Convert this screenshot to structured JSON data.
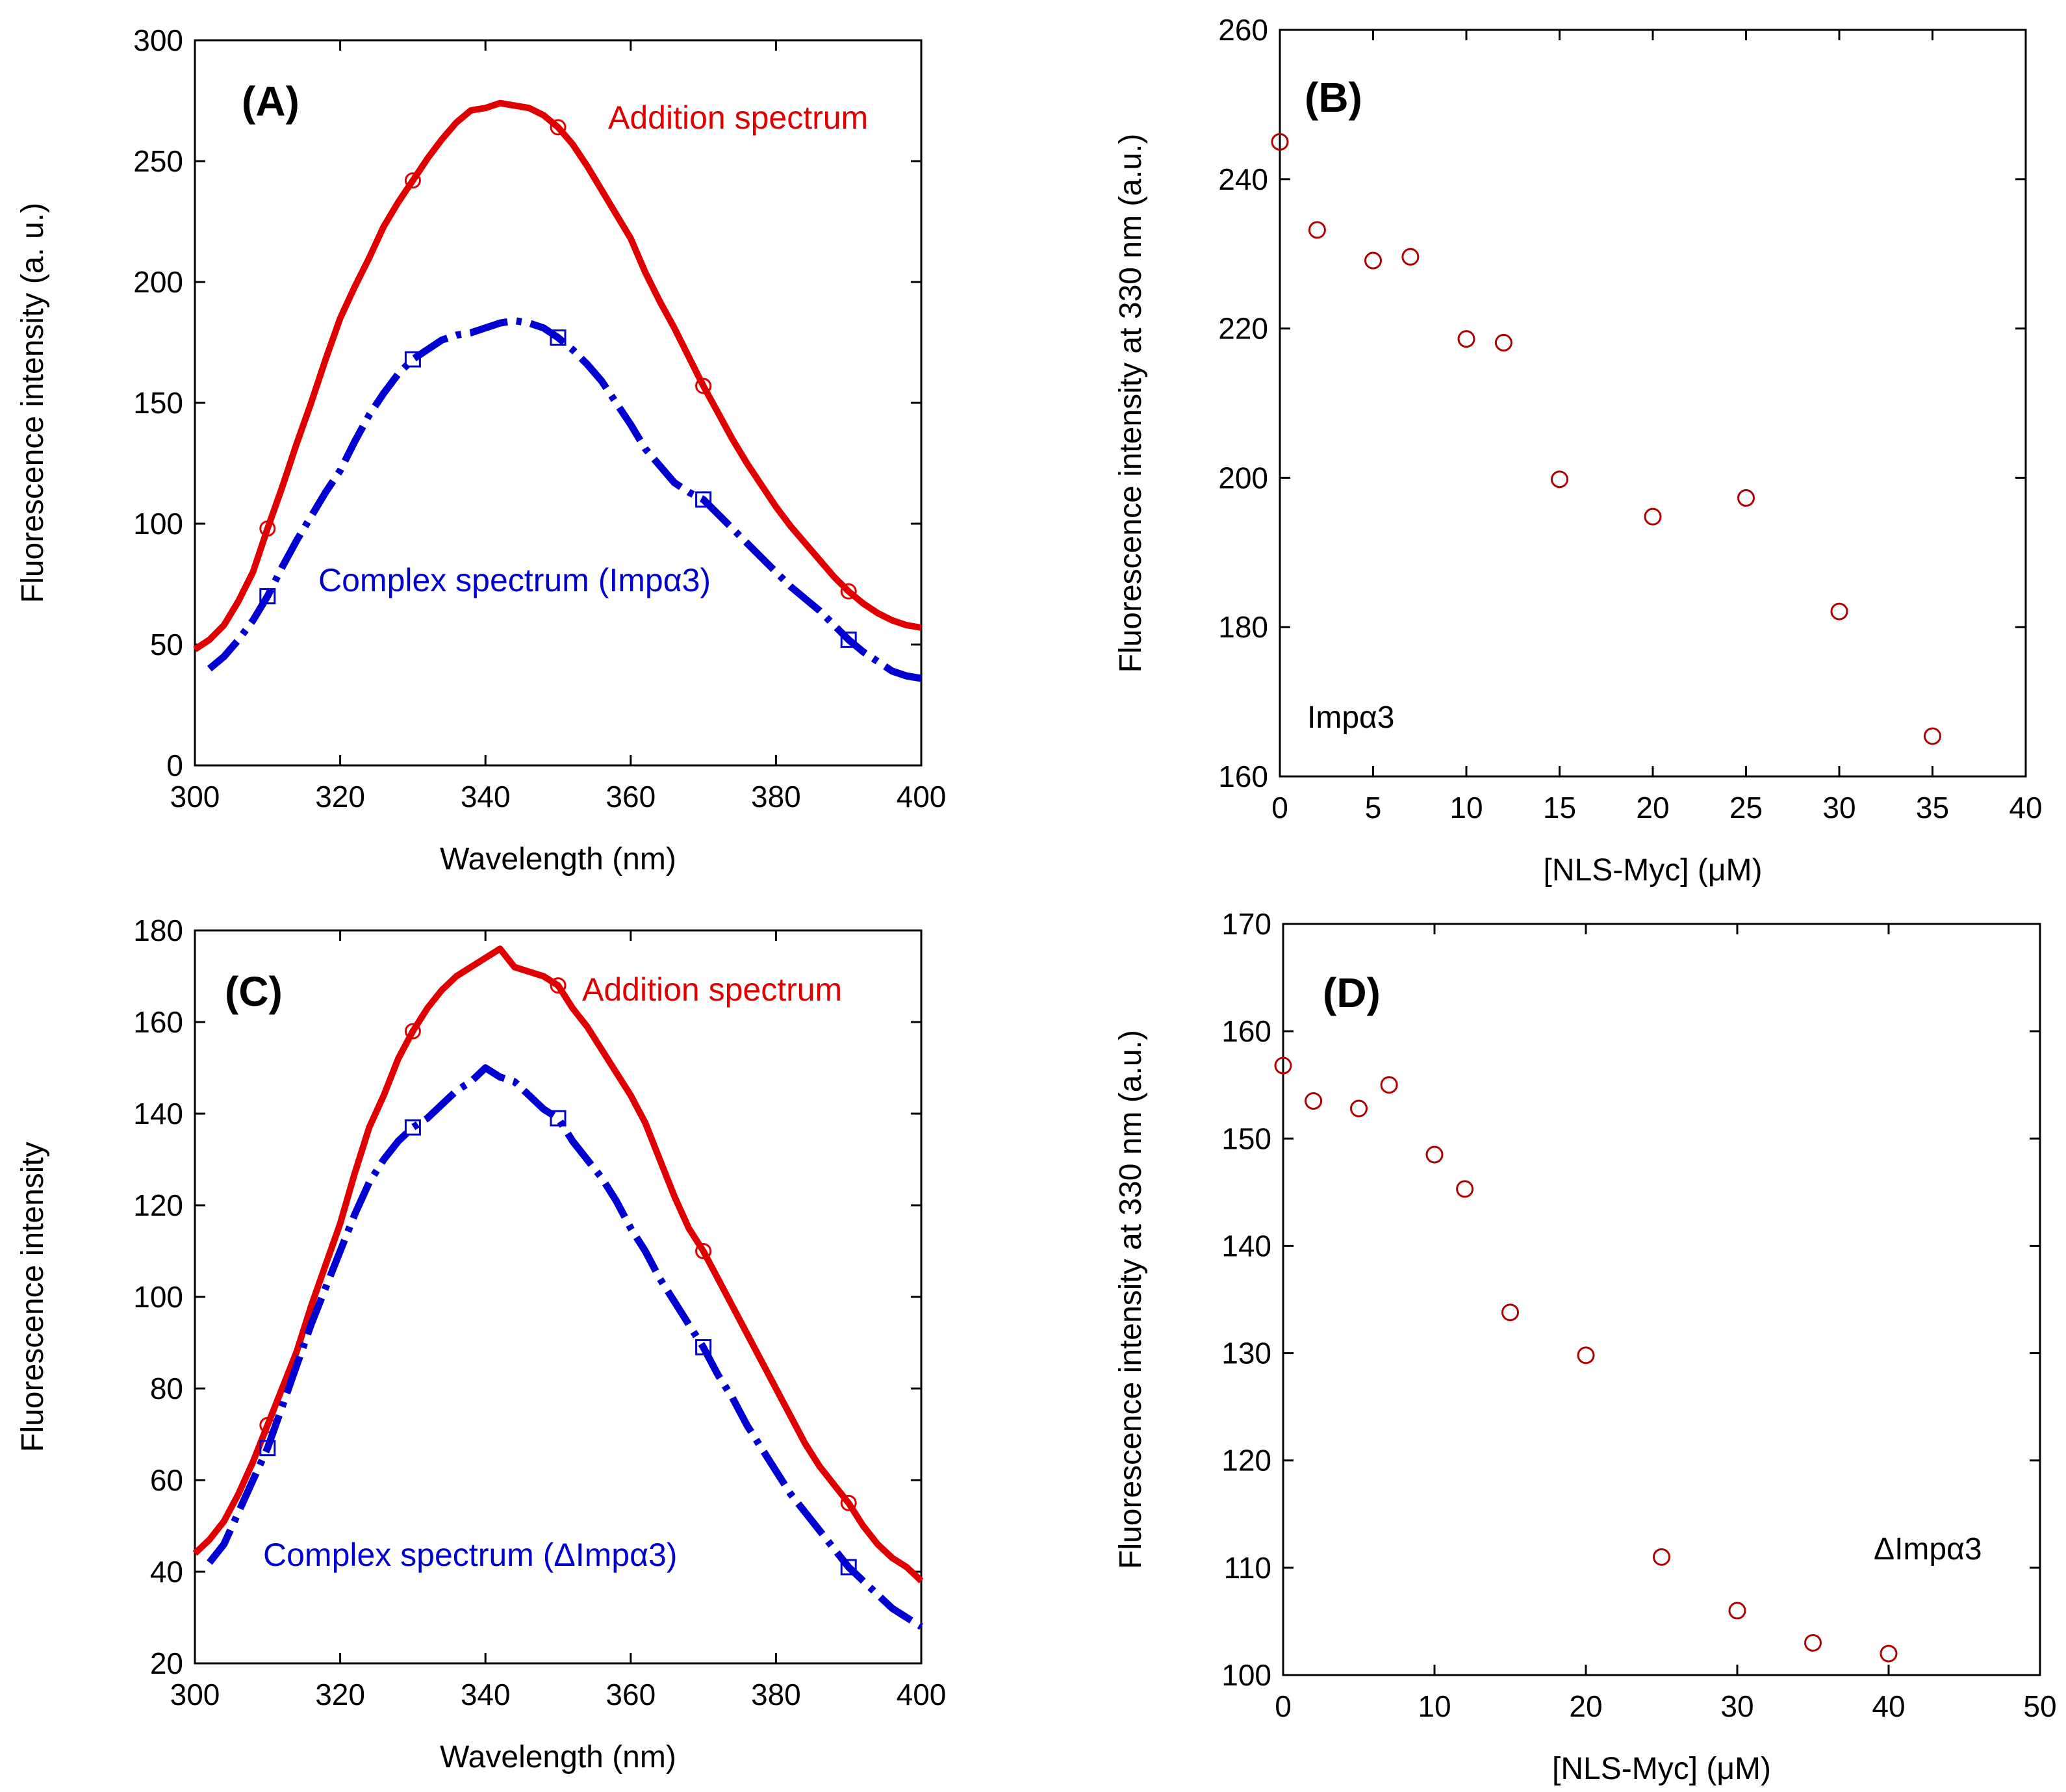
{
  "chart_data": [
    {
      "id": "A",
      "type": "line",
      "panel_label": "(A)",
      "xlabel": "Wavelength (nm)",
      "ylabel": "Fluorescence intensity (a. u.)",
      "xlim": [
        300,
        400
      ],
      "ylim": [
        0,
        300
      ],
      "xticks": [
        300,
        320,
        340,
        360,
        380,
        400
      ],
      "yticks": [
        0,
        50,
        100,
        150,
        200,
        250,
        300
      ],
      "grid": false,
      "series": [
        {
          "name": "Addition spectrum",
          "color": "#e00000",
          "style": "solid",
          "marker": "circle",
          "marker_x": [
            310,
            330,
            350,
            370,
            390
          ],
          "x": [
            300,
            302,
            304,
            306,
            308,
            310,
            312,
            314,
            316,
            318,
            320,
            322,
            324,
            326,
            328,
            330,
            332,
            334,
            336,
            338,
            340,
            342,
            344,
            346,
            348,
            350,
            352,
            354,
            356,
            358,
            360,
            362,
            364,
            366,
            368,
            370,
            372,
            374,
            376,
            378,
            380,
            382,
            384,
            386,
            388,
            390,
            392,
            394,
            396,
            398,
            400
          ],
          "y": [
            48,
            52,
            58,
            68,
            80,
            98,
            115,
            133,
            150,
            168,
            185,
            198,
            210,
            223,
            233,
            242,
            251,
            259,
            266,
            271,
            272,
            274,
            273,
            272,
            269,
            264,
            257,
            248,
            238,
            228,
            218,
            204,
            192,
            181,
            169,
            157,
            146,
            135,
            125,
            116,
            107,
            99,
            92,
            85,
            78,
            72,
            67,
            63,
            60,
            58,
            57
          ]
        },
        {
          "name": "Complex spectrum (Impα3)",
          "color": "#0000d0",
          "style": "dashed",
          "marker": "square",
          "marker_x": [
            310,
            330,
            350,
            370,
            390
          ],
          "x": [
            302,
            304,
            306,
            308,
            310,
            312,
            314,
            316,
            318,
            320,
            322,
            324,
            326,
            328,
            330,
            332,
            334,
            336,
            338,
            340,
            342,
            344,
            346,
            348,
            350,
            352,
            354,
            356,
            358,
            360,
            362,
            364,
            366,
            368,
            370,
            372,
            374,
            376,
            378,
            380,
            382,
            384,
            386,
            388,
            390,
            392,
            394,
            396,
            398,
            400
          ],
          "y": [
            40,
            45,
            52,
            60,
            70,
            82,
            93,
            103,
            113,
            122,
            134,
            145,
            154,
            162,
            168,
            172,
            176,
            178,
            179,
            181,
            183,
            184,
            183,
            181,
            177,
            172,
            166,
            159,
            150,
            141,
            131,
            124,
            117,
            113,
            110,
            104,
            98,
            92,
            86,
            80,
            74,
            69,
            64,
            58,
            52,
            47,
            43,
            39,
            37,
            36
          ]
        }
      ]
    },
    {
      "id": "B",
      "type": "scatter",
      "panel_label": "(B)",
      "annotation": "Impα3",
      "xlabel": "[NLS-Myc] (μM)",
      "ylabel": "Fluorescence intensity at 330 nm (a.u.)",
      "xlim": [
        0,
        40
      ],
      "ylim": [
        160,
        260
      ],
      "xticks": [
        0,
        5,
        10,
        15,
        20,
        25,
        30,
        35,
        40
      ],
      "yticks": [
        160,
        180,
        200,
        220,
        240,
        260
      ],
      "grid": false,
      "marker_color": "#b00000",
      "points": {
        "x": [
          0,
          2,
          5,
          7,
          10,
          12,
          15,
          20,
          25,
          30,
          35
        ],
        "y": [
          245,
          233.2,
          229.1,
          229.6,
          218.6,
          218.1,
          199.8,
          194.8,
          197.3,
          182.1,
          165.4
        ]
      }
    },
    {
      "id": "C",
      "type": "line",
      "panel_label": "(C)",
      "xlabel": "Wavelength (nm)",
      "ylabel": "Fluorescence intensity",
      "xlim": [
        300,
        400
      ],
      "ylim": [
        20,
        180
      ],
      "xticks": [
        300,
        320,
        340,
        360,
        380,
        400
      ],
      "yticks": [
        20,
        40,
        60,
        80,
        100,
        120,
        140,
        160,
        180
      ],
      "grid": false,
      "series": [
        {
          "name": "Addition spectrum",
          "color": "#e00000",
          "style": "solid",
          "marker": "circle",
          "marker_x": [
            310,
            330,
            350,
            370,
            390
          ],
          "x": [
            300,
            302,
            304,
            306,
            308,
            310,
            312,
            314,
            316,
            318,
            320,
            322,
            324,
            326,
            328,
            330,
            332,
            334,
            336,
            338,
            340,
            342,
            344,
            346,
            348,
            350,
            352,
            354,
            356,
            358,
            360,
            362,
            364,
            366,
            368,
            370,
            372,
            374,
            376,
            378,
            380,
            382,
            384,
            386,
            388,
            390,
            392,
            394,
            396,
            398,
            400
          ],
          "y": [
            44,
            47,
            51,
            57,
            64,
            72,
            80,
            88,
            98,
            107,
            116,
            127,
            137,
            144,
            152,
            158,
            163,
            167,
            170,
            172,
            174,
            176,
            172,
            171,
            170,
            168,
            163,
            159,
            154,
            149,
            144,
            138,
            130,
            122,
            115,
            110,
            104,
            98,
            92,
            86,
            80,
            74,
            68,
            63,
            59,
            55,
            50,
            46,
            43,
            41,
            38
          ]
        },
        {
          "name": "Complex spectrum (ΔImpα3)",
          "color": "#0000d0",
          "style": "dashed",
          "marker": "square",
          "marker_x": [
            310,
            330,
            350,
            370,
            390
          ],
          "x": [
            302,
            304,
            306,
            308,
            310,
            312,
            314,
            316,
            318,
            320,
            322,
            324,
            326,
            328,
            330,
            332,
            334,
            336,
            338,
            340,
            342,
            344,
            346,
            348,
            350,
            352,
            354,
            356,
            358,
            360,
            362,
            364,
            366,
            368,
            370,
            372,
            374,
            376,
            378,
            380,
            382,
            384,
            386,
            388,
            390,
            392,
            394,
            396,
            398,
            400
          ],
          "y": [
            42,
            46,
            53,
            60,
            67,
            76,
            85,
            94,
            102,
            110,
            118,
            125,
            130,
            134,
            137,
            139,
            142,
            145,
            147,
            150,
            148,
            147,
            144,
            141,
            139,
            134,
            130,
            126,
            121,
            115,
            110,
            104,
            99,
            94,
            89,
            83,
            78,
            72,
            67,
            62,
            57,
            53,
            49,
            45,
            41,
            38,
            35,
            32,
            30,
            28
          ]
        }
      ]
    },
    {
      "id": "D",
      "type": "scatter",
      "panel_label": "(D)",
      "annotation": "ΔImpα3",
      "xlabel": "[NLS-Myc] (μM)",
      "ylabel": "Fluorescence intensity at 330 nm (a.u.)",
      "xlim": [
        0,
        50
      ],
      "ylim": [
        100,
        170
      ],
      "xticks": [
        0,
        10,
        20,
        30,
        40,
        50
      ],
      "yticks": [
        100,
        110,
        120,
        130,
        140,
        150,
        160,
        170
      ],
      "grid": false,
      "marker_color": "#b00000",
      "points": {
        "x": [
          0,
          2,
          5,
          7,
          10,
          12,
          15,
          20,
          25,
          30,
          35,
          40
        ],
        "y": [
          156.8,
          153.5,
          152.8,
          155.0,
          148.5,
          145.3,
          133.8,
          129.8,
          111.0,
          106.0,
          103.0,
          102.0
        ]
      }
    }
  ]
}
